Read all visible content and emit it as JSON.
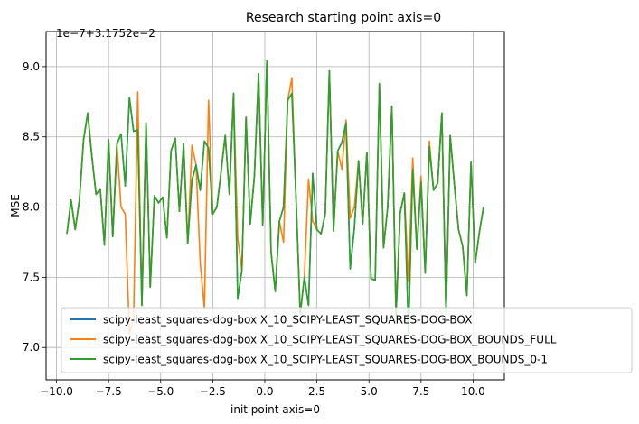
{
  "chart_data": {
    "type": "line",
    "title": "Research starting point axis=0",
    "xlabel": "init point axis=0",
    "ylabel": "MSE",
    "offset_label": "1e−7+3.1752e−2",
    "xlim": [
      -10.5,
      11.5
    ],
    "ylim": [
      6.77,
      9.25
    ],
    "xticks": [
      -10.0,
      -7.5,
      -5.0,
      -2.5,
      0.0,
      2.5,
      5.0,
      7.5,
      10.0
    ],
    "xtick_labels": [
      "−10.0",
      "−7.5",
      "−5.0",
      "−2.5",
      "0.0",
      "2.5",
      "5.0",
      "7.5",
      "10.0"
    ],
    "yticks": [
      7.0,
      7.5,
      8.0,
      8.5,
      9.0
    ],
    "ytick_labels": [
      "7.0",
      "7.5",
      "8.0",
      "8.5",
      "9.0"
    ],
    "grid": true,
    "legend_position": "lower-left",
    "x": [
      -9.5,
      -9.3,
      -9.1,
      -8.9,
      -8.7,
      -8.5,
      -8.3,
      -8.1,
      -7.9,
      -7.7,
      -7.5,
      -7.3,
      -7.1,
      -6.9,
      -6.7,
      -6.5,
      -6.3,
      -6.1,
      -5.9,
      -5.7,
      -5.5,
      -5.3,
      -5.1,
      -4.9,
      -4.7,
      -4.5,
      -4.3,
      -4.1,
      -3.9,
      -3.7,
      -3.5,
      -3.3,
      -3.1,
      -2.9,
      -2.7,
      -2.5,
      -2.3,
      -2.1,
      -1.9,
      -1.7,
      -1.5,
      -1.3,
      -1.1,
      -0.9,
      -0.7,
      -0.5,
      -0.3,
      -0.1,
      0.1,
      0.3,
      0.5,
      0.7,
      0.9,
      1.1,
      1.3,
      1.5,
      1.7,
      1.9,
      2.1,
      2.3,
      2.5,
      2.7,
      2.9,
      3.1,
      3.3,
      3.5,
      3.7,
      3.9,
      4.1,
      4.3,
      4.5,
      4.7,
      4.9,
      5.1,
      5.3,
      5.5,
      5.7,
      5.9,
      6.1,
      6.3,
      6.5,
      6.7,
      6.9,
      7.1,
      7.3,
      7.5,
      7.7,
      7.9,
      8.1,
      8.3,
      8.5,
      8.7,
      8.9,
      9.1,
      9.3,
      9.5,
      9.7,
      9.9,
      10.1,
      10.3,
      10.5
    ],
    "series": [
      {
        "name": "scipy-least_squares-dog-box X_10_SCIPY-LEAST_SQUARES-DOG-BOX",
        "color": "#1f77b4",
        "values": [
          7.81,
          8.05,
          7.84,
          8.05,
          8.48,
          8.67,
          8.36,
          8.09,
          8.13,
          7.73,
          8.48,
          7.79,
          8.45,
          8.52,
          8.15,
          8.78,
          8.54,
          8.55,
          7.3,
          8.6,
          7.43,
          8.08,
          8.03,
          8.07,
          7.78,
          8.4,
          8.49,
          7.97,
          8.45,
          7.74,
          8.19,
          8.3,
          8.12,
          8.47,
          8.42,
          7.95,
          8.0,
          8.25,
          8.51,
          8.09,
          8.81,
          7.35,
          7.55,
          8.64,
          7.88,
          8.22,
          8.95,
          7.87,
          9.04,
          7.68,
          7.4,
          7.9,
          8.0,
          8.76,
          8.81,
          8.06,
          7.24,
          7.5,
          7.3,
          8.24,
          7.84,
          7.81,
          7.95,
          8.97,
          7.83,
          8.4,
          8.46,
          8.6,
          7.56,
          7.85,
          8.33,
          7.88,
          8.39,
          7.49,
          7.48,
          8.88,
          7.71,
          8.0,
          8.72,
          7.23,
          7.96,
          8.1,
          7.11,
          8.27,
          7.7,
          8.18,
          7.53,
          8.43,
          8.12,
          8.17,
          8.67,
          7.24,
          8.51,
          8.16,
          7.84,
          7.72,
          7.37,
          8.32,
          7.6,
          7.82,
          8.0
        ]
      },
      {
        "name": "scipy-least_squares-dog-box X_10_SCIPY-LEAST_SQUARES-DOG-BOX_BOUNDS_FULL",
        "color": "#ff7f0e",
        "values": [
          7.81,
          8.05,
          7.84,
          8.05,
          8.48,
          8.67,
          8.36,
          8.09,
          8.13,
          7.73,
          8.48,
          7.79,
          8.45,
          8.0,
          7.95,
          7.1,
          7.2,
          8.82,
          7.3,
          8.6,
          7.43,
          8.08,
          8.03,
          8.07,
          7.78,
          8.4,
          8.49,
          7.97,
          8.45,
          7.74,
          8.44,
          8.3,
          7.6,
          7.28,
          8.76,
          7.95,
          8.0,
          8.25,
          8.51,
          8.09,
          8.81,
          7.78,
          7.55,
          8.64,
          7.88,
          8.22,
          8.95,
          7.87,
          9.04,
          7.68,
          7.4,
          7.9,
          7.75,
          8.76,
          8.92,
          8.06,
          7.24,
          7.5,
          8.2,
          7.9,
          7.84,
          7.81,
          7.95,
          8.97,
          7.83,
          8.4,
          8.27,
          8.62,
          7.92,
          8.0,
          8.33,
          7.88,
          8.39,
          7.49,
          7.48,
          8.88,
          7.71,
          8.0,
          8.72,
          7.23,
          7.96,
          8.1,
          7.47,
          8.35,
          7.7,
          8.22,
          7.53,
          8.47,
          8.12,
          8.17,
          8.67,
          7.24,
          8.51,
          8.16,
          7.84,
          7.72,
          7.37,
          8.32,
          7.6,
          7.82,
          8.0
        ]
      },
      {
        "name": "scipy-least_squares-dog-box X_10_SCIPY-LEAST_SQUARES-DOG-BOX_BOUNDS_0-1",
        "color": "#2ca02c",
        "values": [
          7.81,
          8.05,
          7.84,
          8.05,
          8.48,
          8.67,
          8.36,
          8.09,
          8.13,
          7.73,
          8.48,
          7.79,
          8.45,
          8.52,
          8.15,
          8.78,
          8.54,
          8.55,
          7.3,
          8.6,
          7.43,
          8.08,
          8.03,
          8.07,
          7.78,
          8.4,
          8.49,
          7.97,
          8.45,
          7.74,
          8.19,
          8.3,
          8.12,
          8.47,
          8.42,
          7.95,
          8.0,
          8.25,
          8.51,
          8.09,
          8.81,
          7.35,
          7.55,
          8.64,
          7.88,
          8.22,
          8.95,
          7.87,
          9.04,
          7.68,
          7.4,
          7.9,
          8.0,
          8.76,
          8.81,
          8.06,
          7.24,
          7.5,
          7.3,
          8.24,
          7.84,
          7.81,
          7.95,
          8.97,
          7.83,
          8.4,
          8.46,
          8.6,
          7.56,
          7.85,
          8.33,
          7.88,
          8.39,
          7.49,
          7.48,
          8.88,
          7.71,
          8.0,
          8.72,
          7.23,
          7.96,
          8.1,
          7.11,
          8.27,
          7.7,
          8.18,
          7.53,
          8.43,
          8.12,
          8.17,
          8.67,
          7.24,
          8.51,
          8.16,
          7.84,
          7.72,
          7.37,
          8.32,
          7.6,
          7.82,
          8.0
        ]
      }
    ]
  }
}
